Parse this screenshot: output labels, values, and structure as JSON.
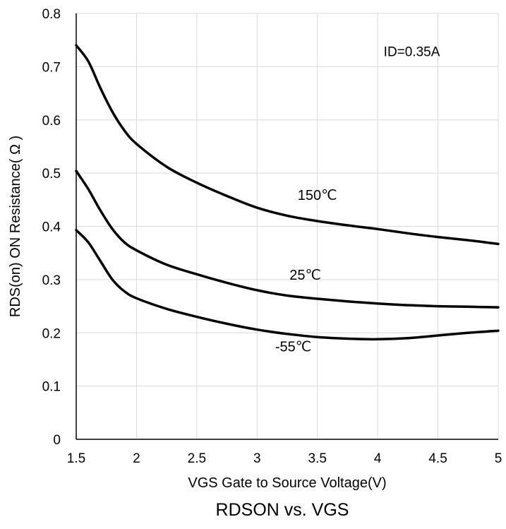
{
  "chart_data": {
    "type": "line",
    "title": "RDSON vs. VGS",
    "xlabel": "VGS Gate to Source Voltage(V)",
    "ylabel": "RDS(on) ON Resistance( Ω )",
    "xlim": [
      1.5,
      5
    ],
    "ylim": [
      0,
      0.8
    ],
    "x_ticks": [
      "1.5",
      "2",
      "2.5",
      "3",
      "3.5",
      "4",
      "4.5",
      "5"
    ],
    "y_ticks": [
      "0",
      "0.1",
      "0.2",
      "0.3",
      "0.4",
      "0.5",
      "0.6",
      "0.7",
      "0.8"
    ],
    "grid": true,
    "annotation": "ID=0.35A",
    "series": [
      {
        "label": "150℃",
        "label_at": [
          3.5,
          0.45
        ],
        "x": [
          1.5,
          1.6,
          1.7,
          1.8,
          1.9,
          2.0,
          2.25,
          2.5,
          2.75,
          3.0,
          3.25,
          3.5,
          3.75,
          4.0,
          4.25,
          4.5,
          4.75,
          5.0
        ],
        "y": [
          0.74,
          0.71,
          0.66,
          0.615,
          0.58,
          0.555,
          0.512,
          0.482,
          0.457,
          0.435,
          0.42,
          0.41,
          0.402,
          0.395,
          0.387,
          0.38,
          0.374,
          0.367
        ]
      },
      {
        "label": "25℃",
        "label_at": [
          3.4,
          0.3
        ],
        "x": [
          1.5,
          1.6,
          1.7,
          1.8,
          1.9,
          2.0,
          2.25,
          2.5,
          2.75,
          3.0,
          3.25,
          3.5,
          3.75,
          4.0,
          4.25,
          4.5,
          4.75,
          5.0
        ],
        "y": [
          0.504,
          0.47,
          0.43,
          0.395,
          0.37,
          0.355,
          0.328,
          0.31,
          0.294,
          0.28,
          0.27,
          0.264,
          0.259,
          0.255,
          0.252,
          0.25,
          0.249,
          0.248
        ]
      },
      {
        "label": "-55℃",
        "label_at": [
          3.3,
          0.165
        ],
        "x": [
          1.5,
          1.6,
          1.7,
          1.8,
          1.9,
          2.0,
          2.25,
          2.5,
          2.75,
          3.0,
          3.25,
          3.5,
          3.75,
          4.0,
          4.25,
          4.5,
          4.75,
          5.0
        ],
        "y": [
          0.393,
          0.37,
          0.335,
          0.3,
          0.278,
          0.265,
          0.245,
          0.23,
          0.217,
          0.206,
          0.198,
          0.192,
          0.189,
          0.188,
          0.19,
          0.195,
          0.2,
          0.204
        ]
      }
    ]
  }
}
